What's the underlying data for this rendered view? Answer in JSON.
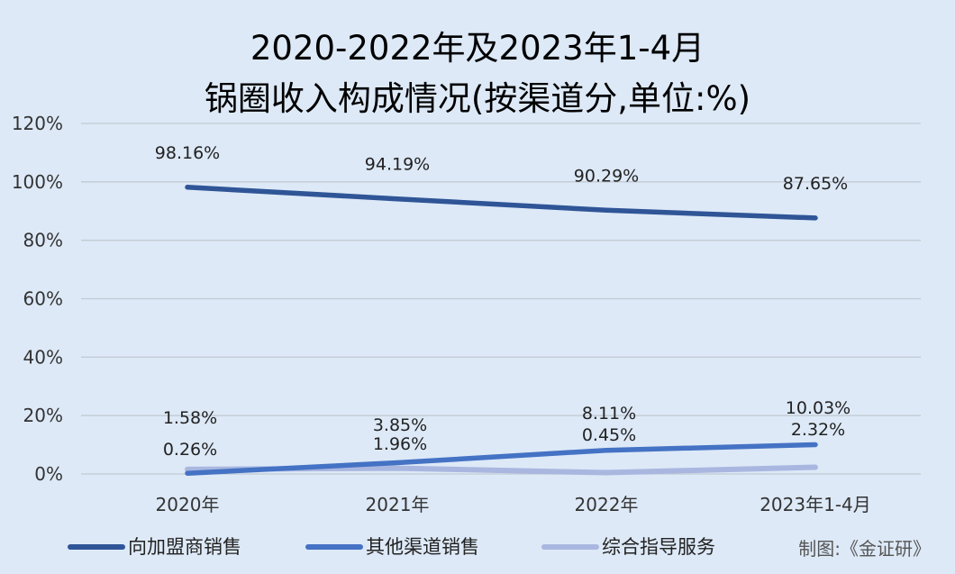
{
  "chart_data": {
    "type": "line",
    "title": "2020-2022年及2023年1-4月",
    "subtitle": "锅圈收入构成情况(按渠道分,单位:%)",
    "categories": [
      "2020年",
      "2021年",
      "2022年",
      "2023年1-4月"
    ],
    "y_ticks": [
      "0%",
      "20%",
      "40%",
      "60%",
      "80%",
      "100%",
      "120%"
    ],
    "ylim": [
      0,
      120
    ],
    "grid": true,
    "legend_position": "bottom-left",
    "series": [
      {
        "name": "向加盟商销售",
        "values": [
          98.16,
          94.19,
          90.29,
          87.65
        ],
        "labels": [
          "98.16%",
          "94.19%",
          "90.29%",
          "87.65%"
        ],
        "color": "#2f5597"
      },
      {
        "name": "其他渠道销售",
        "values": [
          0.26,
          3.85,
          8.11,
          10.03
        ],
        "labels": [
          "0.26%",
          "3.85%",
          "8.11%",
          "10.03%"
        ],
        "color": "#4472c4"
      },
      {
        "name": "综合指导服务",
        "values": [
          1.58,
          1.96,
          0.45,
          2.32
        ],
        "labels": [
          "1.58%",
          "1.96%",
          "0.45%",
          "2.32%"
        ],
        "color": "#a9b7e0"
      }
    ]
  },
  "source": "制图:《金证研》"
}
